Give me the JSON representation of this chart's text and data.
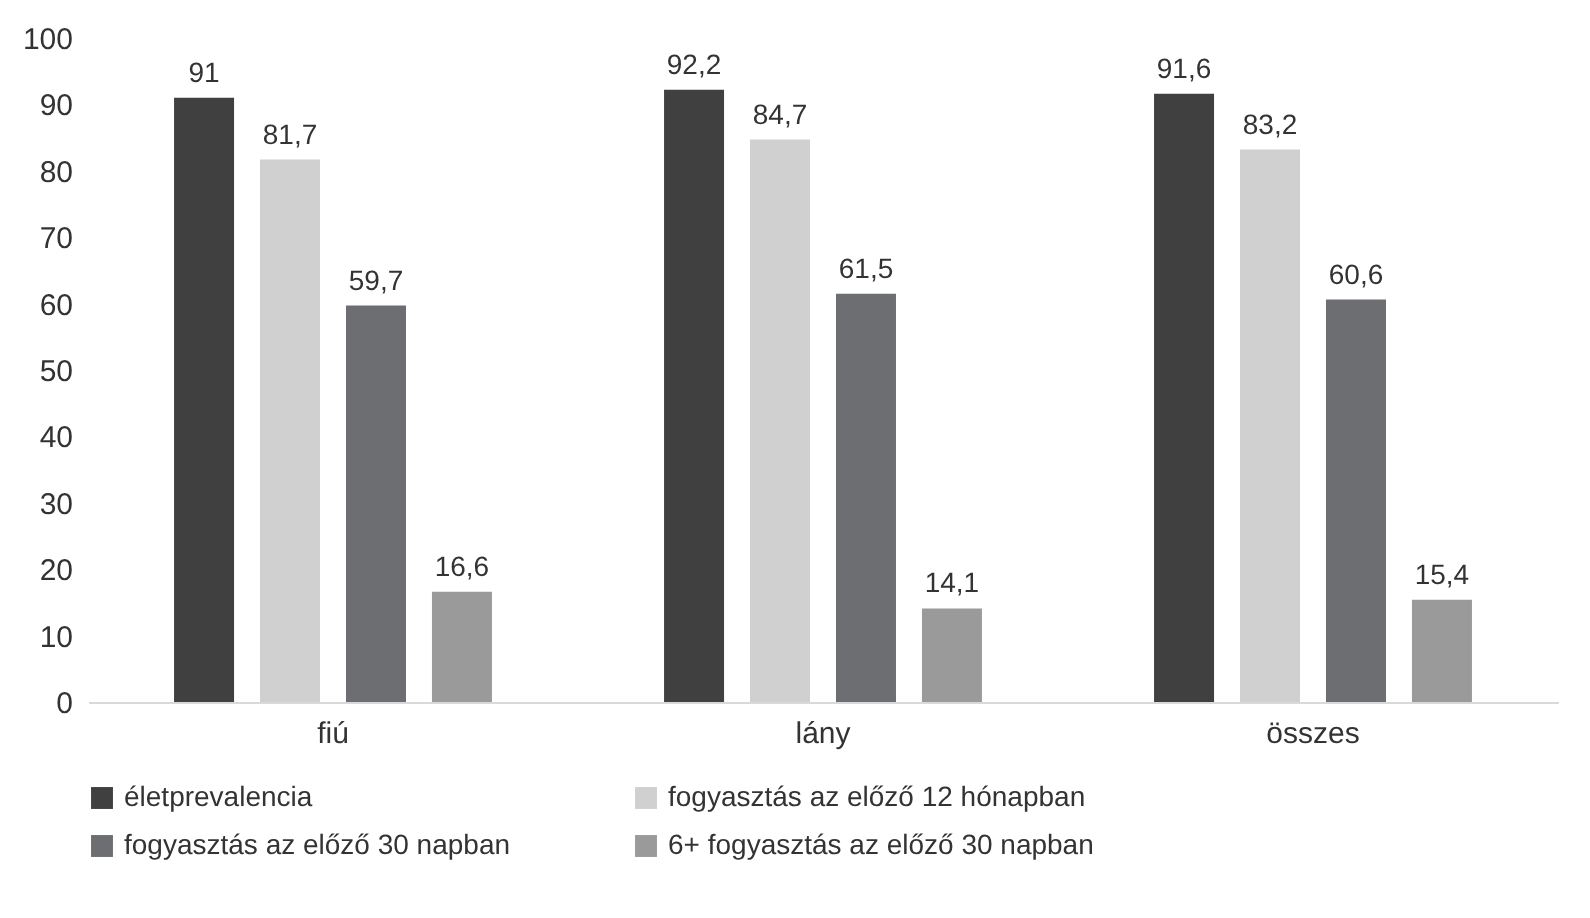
{
  "chart_data": {
    "type": "bar",
    "categories": [
      "fiú",
      "lány",
      "összes"
    ],
    "series": [
      {
        "name": "életprevalencia",
        "color": "#404040",
        "values": [
          91,
          92.2,
          91.6
        ],
        "value_labels": [
          "91",
          "92,2",
          "91,6"
        ]
      },
      {
        "name": "fogyasztás az előző 12 hónapban",
        "color": "#d0d0d0",
        "values": [
          81.7,
          84.7,
          83.2
        ],
        "value_labels": [
          "81,7",
          "84,7",
          "83,2"
        ]
      },
      {
        "name": "fogyasztás az előző 30 napban",
        "color": "#6d6e71",
        "values": [
          59.7,
          61.5,
          60.6
        ],
        "value_labels": [
          "59,7",
          "61,5",
          "60,6"
        ]
      },
      {
        "name": "6+ fogyasztás az előző 30 napban",
        "color": "#9a9a9a",
        "values": [
          16.6,
          14.1,
          15.4
        ],
        "value_labels": [
          "16,6",
          "14,1",
          "15,4"
        ]
      }
    ],
    "ylim": [
      0,
      100
    ],
    "yticks": [
      0,
      10,
      20,
      30,
      40,
      50,
      60,
      70,
      80,
      90,
      100
    ],
    "grid": false,
    "legend": "bottom"
  }
}
